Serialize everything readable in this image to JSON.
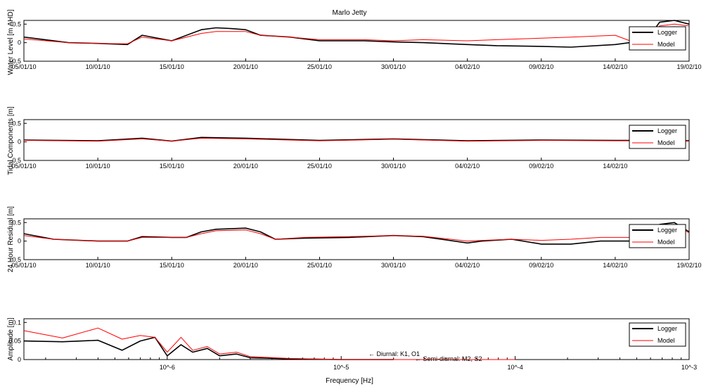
{
  "figure": {
    "title": "Marlo Jetty"
  },
  "colors": {
    "logger": "#000000",
    "model": "#ff0000",
    "axes": "#000000",
    "background": "#ffffff"
  },
  "legend": {
    "logger": "Logger",
    "model": "Model"
  },
  "chart_data": [
    {
      "type": "line",
      "title": "Marlo Jetty",
      "xlabel": "",
      "ylabel": "Water Level [m AHD]",
      "x_ticklabels": [
        "05/01/10",
        "10/01/10",
        "15/01/10",
        "20/01/10",
        "25/01/10",
        "30/01/10",
        "04/02/10",
        "09/02/10",
        "14/02/10",
        "19/02/10"
      ],
      "y_ticklabels": [
        "-0.5",
        "0",
        "0.5"
      ],
      "xlim": [
        "2010-01-05",
        "2010-02-19"
      ],
      "ylim": [
        -0.5,
        0.6
      ],
      "legend_position": "top-right",
      "series": [
        {
          "name": "Logger",
          "color": "#000000",
          "x": [
            "2010-01-05",
            "2010-01-08",
            "2010-01-10",
            "2010-01-12",
            "2010-01-13",
            "2010-01-15",
            "2010-01-17",
            "2010-01-18",
            "2010-01-19",
            "2010-01-20",
            "2010-01-21",
            "2010-01-23",
            "2010-01-25",
            "2010-01-28",
            "2010-01-30",
            "2010-02-01",
            "2010-02-04",
            "2010-02-06",
            "2010-02-09",
            "2010-02-11",
            "2010-02-14",
            "2010-02-15",
            "2010-02-16",
            "2010-02-17",
            "2010-02-18",
            "2010-02-19"
          ],
          "y": [
            0.15,
            0.0,
            -0.02,
            -0.05,
            0.2,
            0.05,
            0.35,
            0.4,
            0.38,
            0.35,
            0.2,
            0.15,
            0.05,
            0.05,
            0.02,
            0.0,
            -0.05,
            -0.08,
            -0.1,
            -0.12,
            -0.05,
            0.0,
            0.0,
            0.55,
            0.6,
            0.5
          ]
        },
        {
          "name": "Model",
          "color": "#ff0000",
          "x": [
            "2010-01-05",
            "2010-01-08",
            "2010-01-10",
            "2010-01-12",
            "2010-01-13",
            "2010-01-15",
            "2010-01-17",
            "2010-01-18",
            "2010-01-19",
            "2010-01-20",
            "2010-01-21",
            "2010-01-23",
            "2010-01-25",
            "2010-01-28",
            "2010-01-30",
            "2010-02-01",
            "2010-02-04",
            "2010-02-06",
            "2010-02-09",
            "2010-02-11",
            "2010-02-14",
            "2010-02-15",
            "2010-02-16",
            "2010-02-17",
            "2010-02-18",
            "2010-02-19"
          ],
          "y": [
            0.1,
            0.0,
            -0.02,
            -0.03,
            0.15,
            0.05,
            0.25,
            0.3,
            0.3,
            0.3,
            0.2,
            0.15,
            0.08,
            0.08,
            0.05,
            0.08,
            0.05,
            0.08,
            0.12,
            0.15,
            0.2,
            0.05,
            0.05,
            0.45,
            0.5,
            0.45
          ]
        }
      ]
    },
    {
      "type": "line",
      "title": "",
      "xlabel": "",
      "ylabel": "Tidal Components [m]",
      "x_ticklabels": [
        "05/01/10",
        "10/01/10",
        "15/01/10",
        "20/01/10",
        "25/01/10",
        "30/01/10",
        "04/02/10",
        "09/02/10",
        "14/02/10"
      ],
      "y_ticklabels": [
        "-0.5",
        "0",
        "0.5"
      ],
      "xlim": [
        "2010-01-05",
        "2010-02-19"
      ],
      "ylim": [
        -0.5,
        0.6
      ],
      "legend_position": "top-right",
      "series": [
        {
          "name": "Logger",
          "color": "#000000",
          "x": [
            "2010-01-05",
            "2010-01-10",
            "2010-01-13",
            "2010-01-15",
            "2010-01-17",
            "2010-01-20",
            "2010-01-25",
            "2010-01-30",
            "2010-02-04",
            "2010-02-09",
            "2010-02-14",
            "2010-02-19"
          ],
          "y": [
            0.05,
            0.03,
            0.1,
            0.02,
            0.12,
            0.1,
            0.04,
            0.08,
            0.03,
            0.05,
            0.04,
            0.03
          ]
        },
        {
          "name": "Model",
          "color": "#ff0000",
          "x": [
            "2010-01-05",
            "2010-01-10",
            "2010-01-13",
            "2010-01-15",
            "2010-01-17",
            "2010-01-20",
            "2010-01-25",
            "2010-01-30",
            "2010-02-04",
            "2010-02-09",
            "2010-02-14",
            "2010-02-19"
          ],
          "y": [
            0.04,
            0.02,
            0.08,
            0.02,
            0.1,
            0.08,
            0.03,
            0.07,
            0.02,
            0.04,
            0.03,
            0.02
          ]
        }
      ]
    },
    {
      "type": "line",
      "title": "",
      "xlabel": "",
      "ylabel": "24 Hour Residual [m]",
      "x_ticklabels": [
        "05/01/10",
        "10/01/10",
        "15/01/10",
        "20/01/10",
        "25/01/10",
        "30/01/10",
        "04/02/10",
        "09/02/10",
        "14/02/10",
        "19/02/10"
      ],
      "y_ticklabels": [
        "-0.5",
        "0",
        "0.5"
      ],
      "xlim": [
        "2010-01-05",
        "2010-02-19"
      ],
      "ylim": [
        -0.5,
        0.6
      ],
      "legend_position": "top-right",
      "series": [
        {
          "name": "Logger",
          "color": "#000000",
          "x": [
            "2010-01-05",
            "2010-01-07",
            "2010-01-10",
            "2010-01-12",
            "2010-01-13",
            "2010-01-15",
            "2010-01-16",
            "2010-01-17",
            "2010-01-18",
            "2010-01-20",
            "2010-01-21",
            "2010-01-22",
            "2010-01-24",
            "2010-01-27",
            "2010-01-30",
            "2010-02-01",
            "2010-02-04",
            "2010-02-05",
            "2010-02-07",
            "2010-02-09",
            "2010-02-11",
            "2010-02-13",
            "2010-02-15",
            "2010-02-16",
            "2010-02-17",
            "2010-02-18",
            "2010-02-19"
          ],
          "y": [
            0.2,
            0.05,
            0.0,
            0.0,
            0.12,
            0.1,
            0.1,
            0.25,
            0.32,
            0.35,
            0.25,
            0.05,
            0.08,
            0.1,
            0.15,
            0.12,
            -0.05,
            0.0,
            0.05,
            -0.08,
            -0.08,
            0.0,
            0.0,
            0.02,
            0.45,
            0.5,
            0.25
          ]
        },
        {
          "name": "Model",
          "color": "#ff0000",
          "x": [
            "2010-01-05",
            "2010-01-07",
            "2010-01-10",
            "2010-01-12",
            "2010-01-13",
            "2010-01-15",
            "2010-01-16",
            "2010-01-17",
            "2010-01-18",
            "2010-01-20",
            "2010-01-21",
            "2010-01-22",
            "2010-01-24",
            "2010-01-27",
            "2010-01-30",
            "2010-02-01",
            "2010-02-04",
            "2010-02-05",
            "2010-02-07",
            "2010-02-09",
            "2010-02-11",
            "2010-02-13",
            "2010-02-15",
            "2010-02-16",
            "2010-02-17",
            "2010-02-18",
            "2010-02-19"
          ],
          "y": [
            0.15,
            0.05,
            0.0,
            0.0,
            0.1,
            0.1,
            0.1,
            0.2,
            0.28,
            0.3,
            0.2,
            0.05,
            0.1,
            0.12,
            0.15,
            0.13,
            0.0,
            0.02,
            0.05,
            0.02,
            0.05,
            0.1,
            0.1,
            0.05,
            0.4,
            0.45,
            0.22
          ]
        }
      ]
    },
    {
      "type": "line",
      "title": "",
      "xlabel": "Frequency [Hz]",
      "ylabel": "Amplitude [m]",
      "x_scale": "log",
      "x_ticklabels": [
        "10^-6",
        "10^-5",
        "10^-4",
        "10^-3"
      ],
      "y_ticklabels": [
        "0",
        "0.05",
        "0.1"
      ],
      "xlim": [
        1.5e-07,
        0.001
      ],
      "ylim": [
        0,
        0.11
      ],
      "legend_position": "top-right",
      "series": [
        {
          "name": "Logger",
          "color": "#000000",
          "x": [
            1.5e-07,
            2.5e-07,
            4e-07,
            5.5e-07,
            7e-07,
            8.5e-07,
            1e-06,
            1.2e-06,
            1.4e-06,
            1.7e-06,
            2e-06,
            2.5e-06,
            3e-06,
            5e-06,
            1e-05,
            2e-05
          ],
          "y": [
            0.05,
            0.048,
            0.052,
            0.025,
            0.05,
            0.06,
            0.01,
            0.04,
            0.02,
            0.03,
            0.01,
            0.015,
            0.005,
            0.002,
            0.0,
            0.0
          ]
        },
        {
          "name": "Model",
          "color": "#ff0000",
          "x": [
            1.5e-07,
            2.5e-07,
            4e-07,
            5.5e-07,
            7e-07,
            8.5e-07,
            1e-06,
            1.2e-06,
            1.4e-06,
            1.7e-06,
            2e-06,
            2.5e-06,
            3e-06,
            5e-06,
            1e-05,
            2e-05,
            5e-05,
            0.0001
          ],
          "y": [
            0.078,
            0.058,
            0.085,
            0.055,
            0.065,
            0.06,
            0.02,
            0.06,
            0.025,
            0.035,
            0.015,
            0.02,
            0.008,
            0.003,
            0.0,
            0.0,
            0.0,
            0.0
          ]
        }
      ],
      "annotations": [
        "← Diurnal: K1, O1",
        "← Semi-diurnal: M2, S2"
      ]
    }
  ]
}
